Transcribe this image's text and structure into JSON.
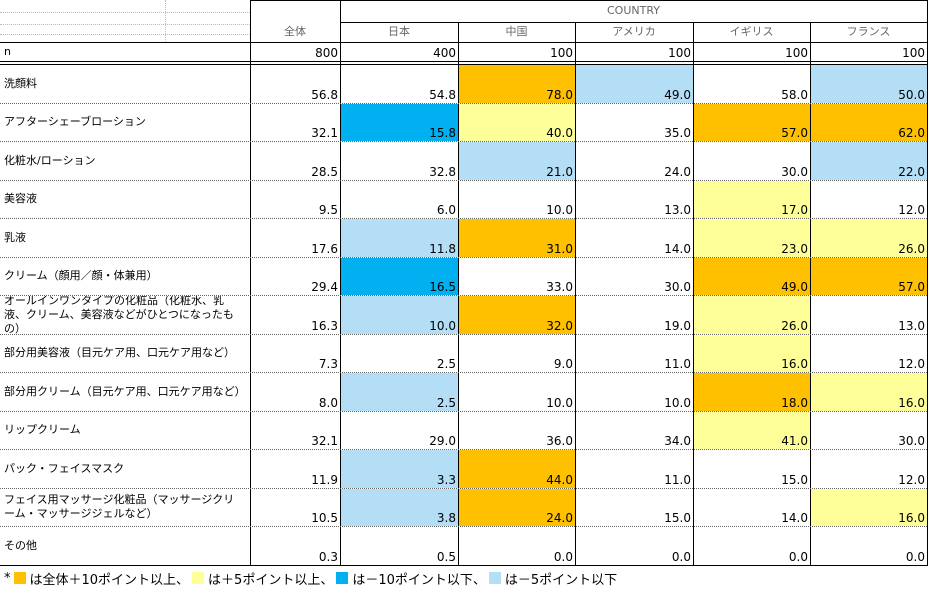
{
  "header": {
    "country_label": "COUNTRY",
    "columns": [
      "全体",
      "日本",
      "中国",
      "アメリカ",
      "イギリス",
      "フランス"
    ],
    "n_label": "n",
    "n_values": [
      "800",
      "400",
      "100",
      "100",
      "100",
      "100"
    ]
  },
  "colors": {
    "plus10": "#ffc000",
    "plus5": "#ffff99",
    "minus10": "#00b0f0",
    "minus5": "#b4def5",
    "none": "#ffffff"
  },
  "chart_data": {
    "type": "table",
    "columns": [
      "全体",
      "日本",
      "中国",
      "アメリカ",
      "イギリス",
      "フランス"
    ],
    "rows": [
      {
        "label": "洗顔料",
        "values": [
          "56.8",
          "54.8",
          "78.0",
          "49.0",
          "58.0",
          "50.0"
        ],
        "marks": [
          "",
          "",
          "plus10",
          "minus5",
          "",
          "minus5"
        ]
      },
      {
        "label": "アフターシェーブローション",
        "values": [
          "32.1",
          "15.8",
          "40.0",
          "35.0",
          "57.0",
          "62.0"
        ],
        "marks": [
          "",
          "minus10",
          "plus5",
          "",
          "plus10",
          "plus10"
        ]
      },
      {
        "label": "化粧水/ローション",
        "values": [
          "28.5",
          "32.8",
          "21.0",
          "24.0",
          "30.0",
          "22.0"
        ],
        "marks": [
          "",
          "",
          "minus5",
          "",
          "",
          "minus5"
        ]
      },
      {
        "label": "美容液",
        "values": [
          "9.5",
          "6.0",
          "10.0",
          "13.0",
          "17.0",
          "12.0"
        ],
        "marks": [
          "",
          "",
          "",
          "",
          "plus5",
          ""
        ]
      },
      {
        "label": "乳液",
        "values": [
          "17.6",
          "11.8",
          "31.0",
          "14.0",
          "23.0",
          "26.0"
        ],
        "marks": [
          "",
          "minus5",
          "plus10",
          "",
          "plus5",
          "plus5"
        ]
      },
      {
        "label": "クリーム（顔用／顔・体兼用）",
        "values": [
          "29.4",
          "16.5",
          "33.0",
          "30.0",
          "49.0",
          "57.0"
        ],
        "marks": [
          "",
          "minus10",
          "",
          "",
          "plus10",
          "plus10"
        ]
      },
      {
        "label": "オールインワンタイプの化粧品（化粧水、乳液、クリーム、美容液などがひとつになったもの）",
        "values": [
          "16.3",
          "10.0",
          "32.0",
          "19.0",
          "26.0",
          "13.0"
        ],
        "marks": [
          "",
          "minus5",
          "plus10",
          "",
          "plus5",
          ""
        ]
      },
      {
        "label": "部分用美容液（目元ケア用、口元ケア用など）",
        "values": [
          "7.3",
          "2.5",
          "9.0",
          "11.0",
          "16.0",
          "12.0"
        ],
        "marks": [
          "",
          "",
          "",
          "",
          "plus5",
          ""
        ]
      },
      {
        "label": "部分用クリーム（目元ケア用、口元ケア用など）",
        "values": [
          "8.0",
          "2.5",
          "10.0",
          "10.0",
          "18.0",
          "16.0"
        ],
        "marks": [
          "",
          "minus5",
          "",
          "",
          "plus10",
          "plus5"
        ]
      },
      {
        "label": "リップクリーム",
        "values": [
          "32.1",
          "29.0",
          "36.0",
          "34.0",
          "41.0",
          "30.0"
        ],
        "marks": [
          "",
          "",
          "",
          "",
          "plus5",
          ""
        ]
      },
      {
        "label": "パック・フェイスマスク",
        "values": [
          "11.9",
          "3.3",
          "44.0",
          "11.0",
          "15.0",
          "12.0"
        ],
        "marks": [
          "",
          "minus5",
          "plus10",
          "",
          "",
          ""
        ]
      },
      {
        "label": "フェイス用マッサージ化粧品（マッサージクリーム・マッサージジェルなど）",
        "values": [
          "10.5",
          "3.8",
          "24.0",
          "15.0",
          "14.0",
          "16.0"
        ],
        "marks": [
          "",
          "minus5",
          "plus10",
          "",
          "",
          "plus5"
        ]
      },
      {
        "label": "その他",
        "values": [
          "0.3",
          "0.5",
          "0.0",
          "0.0",
          "0.0",
          "0.0"
        ],
        "marks": [
          "",
          "",
          "",
          "",
          "",
          ""
        ]
      }
    ]
  },
  "legend": [
    {
      "prefix": "*",
      "mark": "plus10",
      "text": "は全体＋10ポイント以上、"
    },
    {
      "prefix": "",
      "mark": "plus5",
      "text": "は＋5ポイント以上、"
    },
    {
      "prefix": "",
      "mark": "minus10",
      "text": "は－10ポイント以下、"
    },
    {
      "prefix": "",
      "mark": "minus5",
      "text": "は－5ポイント以下"
    }
  ]
}
